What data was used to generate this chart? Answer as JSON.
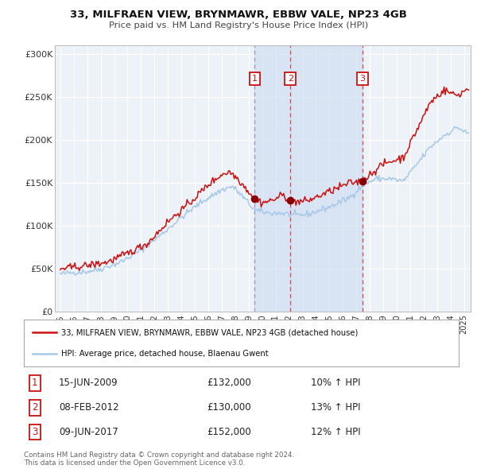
{
  "title_line1": "33, MILFRAEN VIEW, BRYNMAWR, EBBW VALE, NP23 4GB",
  "title_line2": "Price paid vs. HM Land Registry's House Price Index (HPI)",
  "legend_property": "33, MILFRAEN VIEW, BRYNMAWR, EBBW VALE, NP23 4GB (detached house)",
  "legend_hpi": "HPI: Average price, detached house, Blaenau Gwent",
  "sale_events": [
    {
      "num": 1,
      "date": "15-JUN-2009",
      "price": 132000,
      "pct": "10%",
      "dir": "↑",
      "ref": "HPI",
      "date_dec": 2009.45
    },
    {
      "num": 2,
      "date": "08-FEB-2012",
      "price": 130000,
      "pct": "13%",
      "dir": "↑",
      "ref": "HPI",
      "date_dec": 2012.1
    },
    {
      "num": 3,
      "date": "09-JUN-2017",
      "price": 152000,
      "pct": "12%",
      "dir": "↑",
      "ref": "HPI",
      "date_dec": 2017.44
    }
  ],
  "hpi_color": "#a8c8e8",
  "property_color": "#cc1111",
  "marker_color": "#880000",
  "vline1_color": "#9999bb",
  "vline23_color": "#dd4444",
  "plot_bg_color": "#edf2f8",
  "shade_color": "#c8d8f0",
  "grid_color": "#ffffff",
  "fig_bg_color": "#ffffff",
  "num_box_color": "#cc1111",
  "footer_color": "#666666",
  "ylim": [
    0,
    310000
  ],
  "yticks": [
    0,
    50000,
    100000,
    150000,
    200000,
    250000,
    300000
  ],
  "ytick_labels": [
    "£0",
    "£50K",
    "£100K",
    "£150K",
    "£200K",
    "£250K",
    "£300K"
  ],
  "xstart": 1994.6,
  "xend": 2025.5,
  "hpi_anchors_x": [
    1995.0,
    1996.0,
    1997.0,
    1998.0,
    1999.5,
    2001.0,
    2002.5,
    2004.0,
    2005.5,
    2007.0,
    2007.8,
    2008.5,
    2009.5,
    2010.5,
    2011.5,
    2012.5,
    2013.5,
    2015.0,
    2016.5,
    2017.5,
    2018.5,
    2019.5,
    2020.5,
    2021.5,
    2022.5,
    2023.5,
    2024.5,
    2025.3
  ],
  "hpi_anchors_y": [
    44000,
    46000,
    47000,
    50000,
    58000,
    72000,
    90000,
    110000,
    128000,
    142000,
    146000,
    135000,
    118000,
    115000,
    115000,
    112000,
    114000,
    122000,
    133000,
    148000,
    155000,
    155000,
    152000,
    172000,
    192000,
    205000,
    215000,
    207000
  ],
  "prop_anchors_x": [
    1995.0,
    1996.0,
    1997.0,
    1998.5,
    2000.0,
    2001.5,
    2003.0,
    2004.5,
    2006.0,
    2007.0,
    2007.6,
    2008.2,
    2009.0,
    2009.45,
    2010.0,
    2010.8,
    2011.5,
    2012.1,
    2012.8,
    2013.5,
    2015.0,
    2016.5,
    2017.44,
    2018.0,
    2019.0,
    2020.5,
    2021.5,
    2022.5,
    2023.5,
    2024.5,
    2025.3
  ],
  "prop_anchors_y": [
    50000,
    52000,
    54000,
    58000,
    68000,
    80000,
    105000,
    125000,
    148000,
    160000,
    163000,
    155000,
    140000,
    132000,
    127000,
    130000,
    136000,
    130000,
    128000,
    130000,
    140000,
    150000,
    152000,
    160000,
    172000,
    180000,
    212000,
    244000,
    258000,
    252000,
    260000
  ],
  "footer_text": "Contains HM Land Registry data © Crown copyright and database right 2024.\nThis data is licensed under the Open Government Licence v3.0."
}
